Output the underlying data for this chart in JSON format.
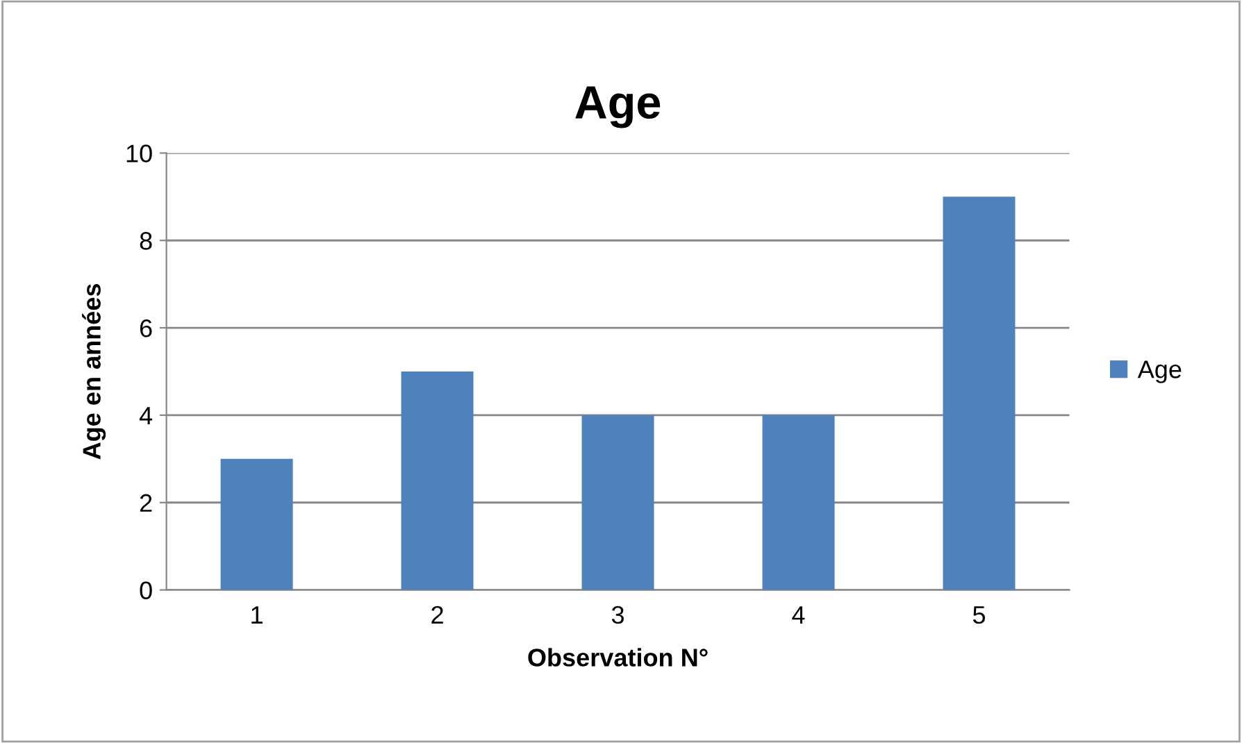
{
  "chart_data": {
    "type": "bar",
    "title": "Age",
    "xlabel": "Observation N°",
    "ylabel": "Age en années",
    "categories": [
      "1",
      "2",
      "3",
      "4",
      "5"
    ],
    "series": [
      {
        "name": "Age",
        "color": "#4f81bd",
        "values": [
          3,
          5,
          4,
          4,
          9
        ]
      }
    ],
    "ylim": [
      0,
      10
    ],
    "yticks": [
      0,
      2,
      4,
      6,
      8,
      10
    ],
    "grid": "y",
    "legend": "right"
  }
}
